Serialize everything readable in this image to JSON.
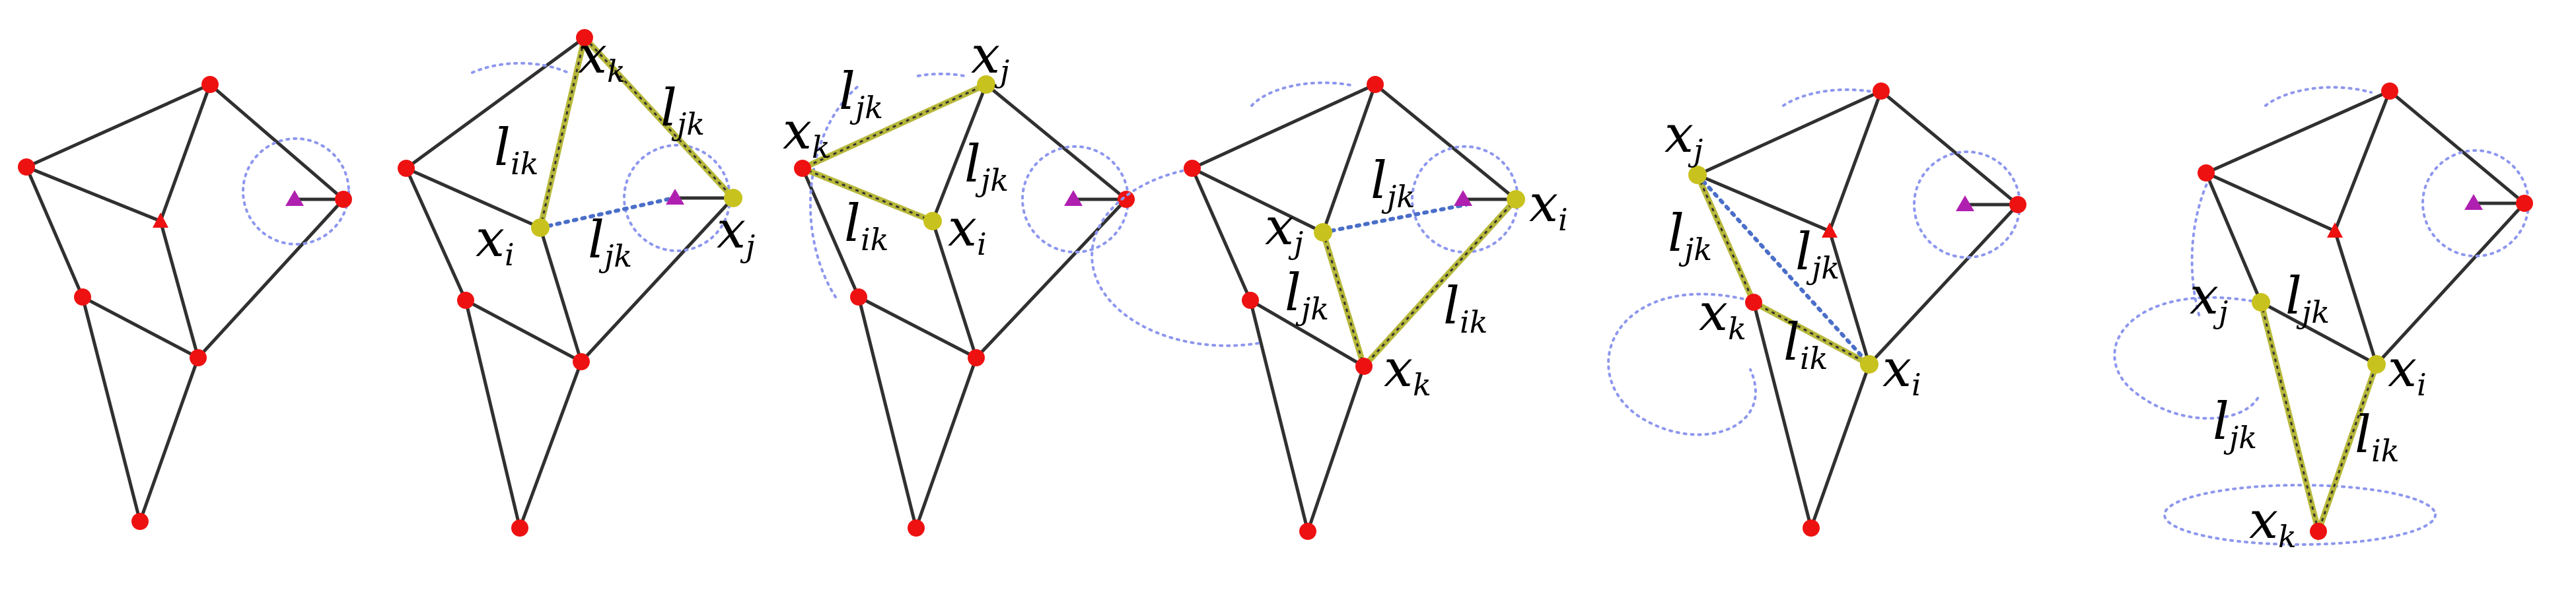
{
  "colors": {
    "fixed_node": "#ee1111",
    "active_node": "#c8c21e",
    "interior_marker": "#b020b0",
    "edge": "#303030",
    "highlight_edge": "#b7b83a",
    "link": "#4a6ec8",
    "circle": "#8d97ee"
  },
  "panels": [
    {
      "id": "p1",
      "labels": []
    },
    {
      "id": "p2",
      "labels": [
        {
          "base": "x",
          "sub": "k"
        },
        {
          "base": "l",
          "sub": "jk"
        },
        {
          "base": "l",
          "sub": "ik"
        },
        {
          "base": "x",
          "sub": "i"
        },
        {
          "base": "l",
          "sub": "jk"
        },
        {
          "base": "x",
          "sub": "j"
        }
      ]
    },
    {
      "id": "p3",
      "labels": [
        {
          "base": "x",
          "sub": "j"
        },
        {
          "base": "l",
          "sub": "jk"
        },
        {
          "base": "x",
          "sub": "k"
        },
        {
          "base": "l",
          "sub": "jk"
        },
        {
          "base": "l",
          "sub": "ik"
        },
        {
          "base": "x",
          "sub": "i"
        }
      ]
    },
    {
      "id": "p4",
      "labels": [
        {
          "base": "l",
          "sub": "jk"
        },
        {
          "base": "x",
          "sub": "i"
        },
        {
          "base": "x",
          "sub": "j"
        },
        {
          "base": "l",
          "sub": "jk"
        },
        {
          "base": "l",
          "sub": "ik"
        },
        {
          "base": "x",
          "sub": "k"
        }
      ]
    },
    {
      "id": "p5",
      "labels": [
        {
          "base": "x",
          "sub": "j"
        },
        {
          "base": "l",
          "sub": "jk"
        },
        {
          "base": "l",
          "sub": "jk"
        },
        {
          "base": "x",
          "sub": "k"
        },
        {
          "base": "l",
          "sub": "ik"
        },
        {
          "base": "x",
          "sub": "i"
        }
      ]
    },
    {
      "id": "p6",
      "labels": [
        {
          "base": "x",
          "sub": "j"
        },
        {
          "base": "l",
          "sub": "jk"
        },
        {
          "base": "x",
          "sub": "i"
        },
        {
          "base": "l",
          "sub": "jk"
        },
        {
          "base": "l",
          "sub": "ik"
        },
        {
          "base": "x",
          "sub": "k"
        }
      ]
    }
  ]
}
